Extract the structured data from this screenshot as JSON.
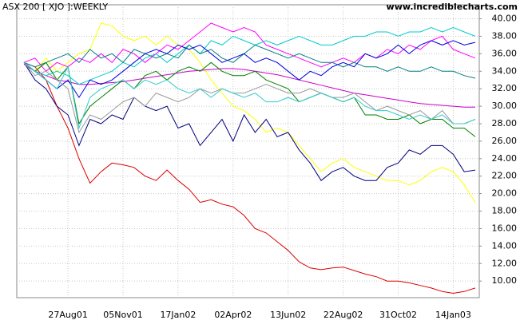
{
  "chart_data": {
    "type": "line",
    "title": "ASX 200 [ XJO ]:WEEKLY",
    "subtitle": "www.incrediblecharts.com",
    "categories": [
      null,
      null,
      null,
      null,
      "27Aug01",
      null,
      null,
      null,
      null,
      "05Nov01",
      null,
      null,
      null,
      null,
      "17Jan02",
      null,
      null,
      null,
      null,
      "02Apr02",
      null,
      null,
      null,
      null,
      "13Jun02",
      null,
      null,
      null,
      null,
      "22Aug02",
      null,
      null,
      null,
      null,
      "31Oct02",
      null,
      null,
      null,
      null,
      "14Jan03",
      null,
      null
    ],
    "ylim": [
      8.1,
      41.6
    ],
    "yticks": [
      {
        "value": 10,
        "label": "10.00"
      },
      {
        "value": 12,
        "label": "12.00"
      },
      {
        "value": 14,
        "label": "14.00"
      },
      {
        "value": 16,
        "label": "16.00"
      },
      {
        "value": 18,
        "label": "18.00"
      },
      {
        "value": 20,
        "label": "20.00"
      },
      {
        "value": 22,
        "label": "22.00"
      },
      {
        "value": 24,
        "label": "24.00"
      },
      {
        "value": 26,
        "label": "26.00"
      },
      {
        "value": 28,
        "label": "28.00"
      },
      {
        "value": 30,
        "label": "30.00"
      },
      {
        "value": 32,
        "label": "32.00"
      },
      {
        "value": 34,
        "label": "34.00"
      },
      {
        "value": 36,
        "label": "36.00"
      },
      {
        "value": 38,
        "label": "38.00"
      },
      {
        "value": 40,
        "label": "40.00"
      }
    ],
    "grid": true,
    "series": [
      {
        "color": "#dd0000",
        "values": [
          35,
          34.5,
          33,
          30,
          27.5,
          24,
          21.2,
          22.5,
          23.5,
          23.3,
          23,
          22,
          21.5,
          22.7,
          21.5,
          20.5,
          19,
          19.3,
          18.8,
          18.5,
          17.5,
          16,
          15.5,
          14.5,
          13.5,
          12.2,
          11.5,
          11.3,
          11.5,
          11.6,
          11.2,
          10.8,
          10.5,
          10,
          10,
          9.8,
          9.5,
          9.2,
          8.8,
          8.6,
          8.8,
          9.2
        ]
      },
      {
        "color": "#ffff00",
        "values": [
          35,
          34,
          35.5,
          34,
          35,
          36,
          36.5,
          39.5,
          39.2,
          38,
          37.5,
          38,
          37,
          38,
          37,
          36.5,
          35,
          33,
          31.5,
          30,
          29.5,
          28.5,
          27,
          27.5,
          27,
          25.5,
          24,
          22.5,
          23.5,
          24,
          23,
          22.5,
          22,
          21.5,
          21.5,
          21,
          21.5,
          22.5,
          23,
          22.5,
          21,
          19
        ]
      },
      {
        "color": "#000080",
        "values": [
          35,
          33,
          32,
          30,
          29,
          25.5,
          28.5,
          28,
          29,
          28.5,
          31,
          30,
          29.5,
          30,
          27.5,
          28,
          25.5,
          27,
          28.5,
          26,
          29,
          27,
          28.5,
          26.5,
          27,
          25,
          23.5,
          21.5,
          22.5,
          23,
          22,
          21.5,
          21.5,
          23,
          23.5,
          25,
          24.5,
          25.5,
          25.5,
          24.5,
          22.5,
          22.7
        ]
      },
      {
        "color": "#cc00cc",
        "values": [
          34.8,
          34,
          33.5,
          33,
          32.8,
          32.5,
          32.5,
          32.6,
          32.7,
          32.8,
          33,
          33.2,
          33.4,
          33.6,
          33.8,
          34,
          34.1,
          34.2,
          34.3,
          34.3,
          34.2,
          34,
          33.8,
          33.6,
          33.3,
          33,
          32.7,
          32.4,
          32.1,
          31.8,
          31.5,
          31.3,
          31.1,
          30.9,
          30.7,
          30.5,
          30.3,
          30.2,
          30.1,
          30,
          29.9,
          29.9
        ]
      },
      {
        "color": "#ff00ff",
        "values": [
          35,
          35.5,
          34,
          35,
          34.5,
          35.5,
          35,
          36,
          35,
          36.5,
          36,
          35,
          36,
          37,
          36.5,
          37.5,
          38.5,
          39.5,
          39,
          38.5,
          39,
          38.5,
          37,
          36.5,
          36,
          35.5,
          35,
          34.5,
          35,
          35.5,
          35,
          36,
          35.5,
          36.5,
          36,
          37,
          36.5,
          37.5,
          38,
          36.5,
          36,
          35.5
        ]
      },
      {
        "color": "#00cccc",
        "values": [
          35,
          34,
          33.5,
          34,
          33.5,
          32.5,
          33,
          33.5,
          34,
          35,
          34.5,
          35.5,
          36,
          35,
          36,
          37,
          36,
          37.5,
          37,
          38,
          37.5,
          37,
          37.5,
          37,
          37.5,
          38,
          37.5,
          37,
          37,
          37.5,
          38,
          38,
          38.5,
          38.5,
          38,
          38.5,
          38.5,
          39,
          38.5,
          39,
          38.5,
          38
        ]
      },
      {
        "color": "#008080",
        "values": [
          35,
          34.5,
          35,
          35.5,
          36,
          35,
          36.5,
          35.5,
          36,
          35,
          36.5,
          36,
          35.5,
          36,
          35.5,
          37,
          36,
          36.5,
          35.5,
          35,
          36,
          37,
          36.5,
          36,
          35.5,
          36,
          35.5,
          35,
          35,
          34.5,
          35,
          34.5,
          34.5,
          34,
          34.5,
          34,
          34,
          34.5,
          34,
          34,
          33.5,
          33.2
        ]
      },
      {
        "color": "#0000dd",
        "values": [
          35,
          34,
          33,
          32,
          33,
          31,
          33,
          32.5,
          33,
          34,
          35,
          36,
          36.5,
          36,
          37,
          36.5,
          37,
          36,
          35,
          35.5,
          36,
          35,
          35.5,
          35,
          34,
          33,
          34,
          33.5,
          34.5,
          35,
          34.5,
          36,
          35.5,
          36,
          37,
          36,
          37,
          37.5,
          37,
          37.5,
          37,
          37.3
        ]
      },
      {
        "color": "#008000",
        "values": [
          35,
          34,
          35,
          33,
          34.5,
          28,
          30,
          31,
          32,
          33,
          32,
          33.5,
          34,
          33,
          34,
          34.5,
          34,
          35,
          34,
          33.5,
          33.5,
          34,
          33,
          32.5,
          32,
          30.5,
          31,
          31.5,
          31,
          30.5,
          31,
          29,
          29,
          28.5,
          28.5,
          29,
          28,
          28.5,
          28.5,
          27.5,
          27.5,
          26.5
        ]
      },
      {
        "color": "#999999",
        "values": [
          35,
          33.5,
          34,
          33,
          32,
          27,
          29,
          28.5,
          29.5,
          30.5,
          31,
          30,
          31.5,
          31,
          30.5,
          31,
          32,
          31.5,
          32,
          31.5,
          31.5,
          32,
          32.5,
          32,
          31.5,
          31.5,
          32,
          31.5,
          31,
          31,
          31.5,
          30.5,
          29.5,
          30,
          29.5,
          29,
          29.5,
          28.5,
          29.5,
          28,
          28,
          28.5
        ]
      },
      {
        "color": "#33cccc",
        "values": [
          35,
          34,
          33,
          32,
          34.5,
          27.5,
          31,
          32,
          32.5,
          33,
          32,
          33,
          32.5,
          33,
          32,
          31.5,
          32,
          31,
          32,
          31.5,
          31,
          31.5,
          30.5,
          30.5,
          31,
          30.5,
          31,
          31.5,
          31,
          30.5,
          31,
          30,
          29.5,
          29.5,
          29,
          28.5,
          29,
          28.5,
          29,
          28,
          28,
          28.5
        ]
      }
    ]
  }
}
